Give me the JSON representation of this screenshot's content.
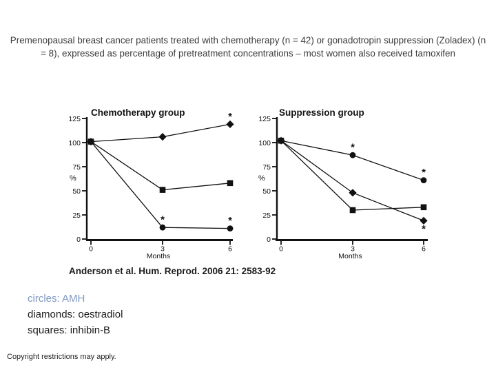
{
  "slide": {
    "title": "Premenopausal breast cancer patients treated with chemotherapy (n = 42) or gonadotropin suppression (Zoladex) (n = 8), expressed as percentage of pretreatment concentrations – most women also received tamoxifen",
    "citation": "Anderson et al. Hum. Reprod. 2006 21: 2583-92",
    "copyright": "Copyright restrictions may apply."
  },
  "colors": {
    "chart_ink": "#111111",
    "body_text": "#3c3c3c",
    "amh_legend_blue": "#7e97c1"
  },
  "legend": {
    "items": [
      {
        "label": "circles: AMH",
        "color": "#7e97c1"
      },
      {
        "label": "diamonds: oestradiol",
        "color": "#1c1c1c"
      },
      {
        "label": "squares: inhibin-B",
        "color": "#1c1c1c"
      }
    ]
  },
  "chart_data": [
    {
      "type": "line",
      "title": "Chemotherapy group",
      "x": [
        0,
        3,
        6
      ],
      "xlabel": "Months",
      "ylabel": "%",
      "ylim": [
        0,
        125
      ],
      "yticks": [
        0,
        25,
        50,
        75,
        100,
        125
      ],
      "grid": false,
      "legend_position": "none",
      "series": [
        {
          "name": "oestradiol",
          "marker": "diamond",
          "values": [
            101,
            106,
            119
          ]
        },
        {
          "name": "inhibin-B",
          "marker": "square",
          "values": [
            101,
            51,
            58
          ]
        },
        {
          "name": "AMH",
          "marker": "circle",
          "values": [
            101,
            12,
            11
          ]
        }
      ],
      "annotations": [
        {
          "text": "*",
          "series": "AMH",
          "point": 1,
          "placement": "above"
        },
        {
          "text": "*",
          "series": "AMH",
          "point": 2,
          "placement": "above"
        },
        {
          "text": "*",
          "series": "oestradiol",
          "point": 2,
          "placement": "above"
        }
      ]
    },
    {
      "type": "line",
      "title": "Suppression group",
      "x": [
        0,
        3,
        6
      ],
      "xlabel": "Months",
      "ylabel": "%",
      "ylim": [
        0,
        125
      ],
      "yticks": [
        0,
        25,
        50,
        75,
        100,
        125
      ],
      "grid": false,
      "legend_position": "none",
      "series": [
        {
          "name": "oestradiol",
          "marker": "diamond",
          "values": [
            102,
            48,
            19
          ]
        },
        {
          "name": "inhibin-B",
          "marker": "square",
          "values": [
            102,
            30,
            33
          ]
        },
        {
          "name": "AMH",
          "marker": "circle",
          "values": [
            102,
            87,
            61
          ]
        }
      ],
      "annotations": [
        {
          "text": "*",
          "series": "AMH",
          "point": 1,
          "placement": "above"
        },
        {
          "text": "*",
          "series": "AMH",
          "point": 2,
          "placement": "above"
        },
        {
          "text": "*",
          "series": "oestradiol",
          "point": 2,
          "placement": "below"
        }
      ]
    }
  ]
}
